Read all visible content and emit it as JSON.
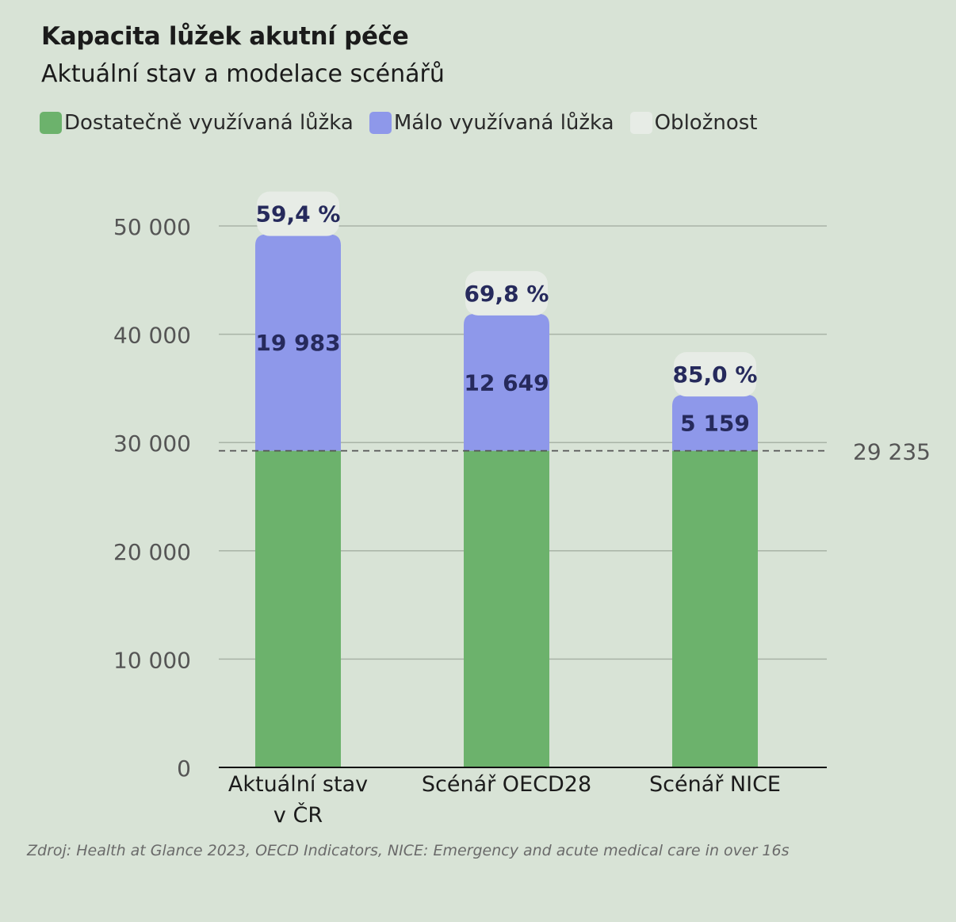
{
  "title": "Kapacita lůžek akutní péče",
  "subtitle": "Aktuální stav a modelace scénářů",
  "legend": [
    {
      "label": "Dostatečně využívaná lůžka",
      "color": "#6cb26c"
    },
    {
      "label": "Málo využívaná lůžka",
      "color": "#8e98ea"
    },
    {
      "label": "Obložnost",
      "color": "#e7ece6"
    }
  ],
  "source": "Zdroj: Health at Glance 2023, OECD Indicators, NICE: Emergency and acute medical care in over 16s",
  "chart_data": {
    "type": "bar",
    "stacked": true,
    "categories": [
      "Aktuální stav v ČR",
      "Scénář OECD28",
      "Scénář NICE"
    ],
    "category_lines": [
      [
        "Aktuální stav",
        "v ČR"
      ],
      [
        "Scénář OECD28"
      ],
      [
        "Scénář NICE"
      ]
    ],
    "series": [
      {
        "name": "Dostatečně využívaná lůžka",
        "values": [
          29235,
          29235,
          29235
        ],
        "color": "#6cb26c"
      },
      {
        "name": "Málo využívaná lůžka",
        "values": [
          19983,
          12649,
          5159
        ],
        "color": "#8e98ea",
        "labels": [
          "19 983",
          "12 649",
          "5 159"
        ]
      }
    ],
    "occupancy": [
      "59,4 %",
      "69,8 %",
      "85,0 %"
    ],
    "reference_line": {
      "value": 29235,
      "label": "29 235"
    },
    "yticks": [
      0,
      10000,
      20000,
      30000,
      40000,
      50000
    ],
    "ytick_labels": [
      "0",
      "10 000",
      "20 000",
      "30 000",
      "40 000",
      "50 000"
    ],
    "ylim": [
      0,
      50000
    ],
    "grid": true
  }
}
